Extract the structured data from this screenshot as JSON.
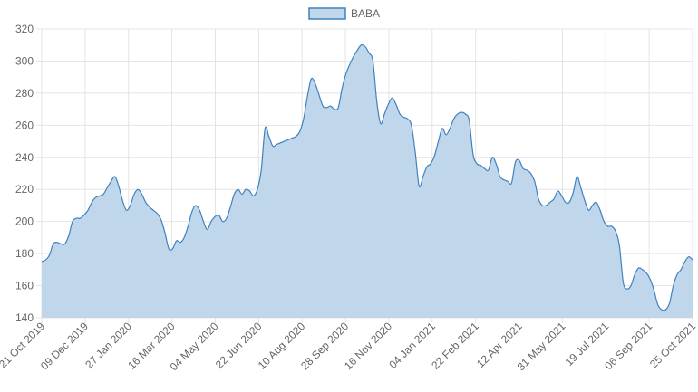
{
  "chart_data": {
    "type": "area",
    "title": "",
    "xlabel": "",
    "ylabel": "",
    "ylim": [
      140,
      320
    ],
    "y_ticks": [
      140,
      160,
      180,
      200,
      220,
      240,
      260,
      280,
      300,
      320
    ],
    "x_tick_labels": [
      "21 Oct 2019",
      "09 Dec 2019",
      "27 Jan 2020",
      "16 Mar 2020",
      "04 May 2020",
      "22 Jun 2020",
      "10 Aug 2020",
      "28 Sep 2020",
      "16 Nov 2020",
      "04 Jan 2021",
      "22 Feb 2021",
      "12 Apr 2021",
      "31 May 2021",
      "19 Jul 2021",
      "06 Sep 2021",
      "25 Oct 2021"
    ],
    "grid": true,
    "legend": {
      "position": "top-center"
    },
    "series": [
      {
        "name": "BABA",
        "color": "#3e82c0",
        "fill": "#c0d6ea",
        "x_start": "21 Oct 2019",
        "x_end": "25 Oct 2021",
        "values": [
          175,
          176,
          179,
          186,
          187,
          186,
          186,
          191,
          200,
          202,
          202,
          204,
          207,
          212,
          215,
          216,
          217,
          221,
          225,
          228,
          222,
          213,
          207,
          210,
          217,
          220,
          217,
          212,
          209,
          207,
          205,
          201,
          193,
          183,
          183,
          188,
          187,
          190,
          197,
          206,
          210,
          207,
          200,
          195,
          200,
          203,
          204,
          200,
          202,
          209,
          217,
          220,
          217,
          220,
          219,
          216,
          220,
          232,
          258,
          253,
          247,
          248,
          249,
          250,
          251,
          252,
          253,
          256,
          264,
          278,
          289,
          286,
          279,
          272,
          271,
          272,
          270,
          271,
          283,
          292,
          298,
          303,
          307,
          310,
          309,
          305,
          300,
          275,
          261,
          267,
          273,
          277,
          273,
          267,
          265,
          264,
          260,
          243,
          222,
          228,
          234,
          236,
          241,
          250,
          258,
          254,
          258,
          264,
          267,
          268,
          267,
          263,
          242,
          236,
          235,
          233,
          232,
          240,
          236,
          228,
          226,
          225,
          224,
          237,
          238,
          233,
          232,
          230,
          225,
          214,
          210,
          210,
          212,
          214,
          219,
          216,
          212,
          212,
          218,
          228,
          221,
          213,
          207,
          210,
          212,
          207,
          200,
          197,
          197,
          194,
          185,
          162,
          158,
          160,
          167,
          171,
          170,
          168,
          164,
          157,
          148,
          145,
          145,
          149,
          160,
          167,
          170,
          175,
          178,
          176
        ]
      }
    ]
  }
}
